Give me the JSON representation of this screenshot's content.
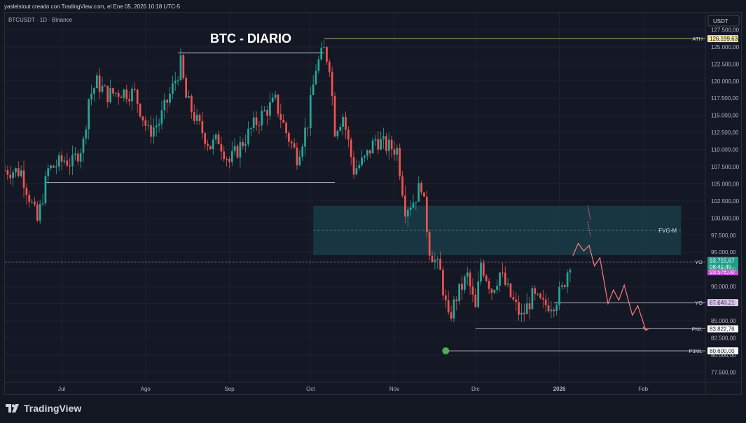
{
  "header": {
    "byline": "yaslelstout creado con TradingView.com, el Ene 05, 2026 10:18 UTC-5"
  },
  "symbol_line": "BTCUSDT · 1D · Binance",
  "currency_button": "USDT",
  "brand": {
    "name": "TradingView"
  },
  "colors": {
    "background": "#141824",
    "up": "#26a69a",
    "down": "#ef5350",
    "grid": "#1e2230",
    "text": "#b2b5be",
    "fvg_zone": "#173c48",
    "projection": "#f77c80",
    "ath_line": "#e6e08a",
    "yo_label": "#c552d6",
    "current_label": "#1e9e8a",
    "dot": "#4caf50"
  },
  "chart_data": {
    "type": "candlestick",
    "title": "BTC - DIARIO",
    "symbol": "BTCUSDT",
    "timeframe": "1D",
    "exchange": "Binance",
    "y_range": [
      76000,
      130000
    ],
    "y_ticks": [
      127500,
      125000,
      122500,
      120000,
      117500,
      115000,
      112500,
      110000,
      107500,
      105000,
      102500,
      100000,
      97500,
      95000,
      92500,
      90000,
      87500,
      85000,
      82500,
      80000,
      77500
    ],
    "y_tick_labels": [
      "127.500,00",
      "125.000,00",
      "122.500,00",
      "120.000,00",
      "117.500,00",
      "115.000,00",
      "112.500,00",
      "110.000,00",
      "107.500,00",
      "105.000,00",
      "102.500,00",
      "100.000,00",
      "97.500,00",
      "95.000,00",
      "92.500,00",
      "90.000,00",
      "87.500,00",
      "85.000,00",
      "82.500,00",
      "80.000,00",
      "77.500,00"
    ],
    "x_range": [
      "2025-06-10",
      "2026-02-24"
    ],
    "x_ticks": [
      {
        "date": "2025-07-01",
        "label": "Jul"
      },
      {
        "date": "2025-08-01",
        "label": "Ago"
      },
      {
        "date": "2025-09-01",
        "label": "Sep"
      },
      {
        "date": "2025-10-01",
        "label": "Oct"
      },
      {
        "date": "2025-11-01",
        "label": "Nov"
      },
      {
        "date": "2025-12-01",
        "label": "Dic"
      },
      {
        "date": "2026-01-01",
        "label": "2026"
      },
      {
        "date": "2026-02-01",
        "label": "Feb"
      }
    ],
    "series_closes": [
      {
        "date": "2025-06-10",
        "close": 107000
      },
      {
        "date": "2025-06-16",
        "close": 106800
      },
      {
        "date": "2025-06-22",
        "close": 99500
      },
      {
        "date": "2025-06-26",
        "close": 107000
      },
      {
        "date": "2025-07-02",
        "close": 108500
      },
      {
        "date": "2025-07-05",
        "close": 108000
      },
      {
        "date": "2025-07-09",
        "close": 111000
      },
      {
        "date": "2025-07-11",
        "close": 117500
      },
      {
        "date": "2025-07-14",
        "close": 119800
      },
      {
        "date": "2025-07-18",
        "close": 118000
      },
      {
        "date": "2025-07-23",
        "close": 118500
      },
      {
        "date": "2025-07-28",
        "close": 118200
      },
      {
        "date": "2025-08-02",
        "close": 112500
      },
      {
        "date": "2025-08-06",
        "close": 114000
      },
      {
        "date": "2025-08-11",
        "close": 119000
      },
      {
        "date": "2025-08-14",
        "close": 122500
      },
      {
        "date": "2025-08-16",
        "close": 117500
      },
      {
        "date": "2025-08-20",
        "close": 114000
      },
      {
        "date": "2025-08-25",
        "close": 110500
      },
      {
        "date": "2025-08-28",
        "close": 111500
      },
      {
        "date": "2025-09-01",
        "close": 108200
      },
      {
        "date": "2025-09-05",
        "close": 110500
      },
      {
        "date": "2025-09-10",
        "close": 113500
      },
      {
        "date": "2025-09-14",
        "close": 115500
      },
      {
        "date": "2025-09-18",
        "close": 117000
      },
      {
        "date": "2025-09-22",
        "close": 112500
      },
      {
        "date": "2025-09-26",
        "close": 109000
      },
      {
        "date": "2025-09-30",
        "close": 114000
      },
      {
        "date": "2025-10-03",
        "close": 122000
      },
      {
        "date": "2025-10-06",
        "close": 124500
      },
      {
        "date": "2025-10-08",
        "close": 122500
      },
      {
        "date": "2025-10-10",
        "close": 113000
      },
      {
        "date": "2025-10-13",
        "close": 115000
      },
      {
        "date": "2025-10-17",
        "close": 107000
      },
      {
        "date": "2025-10-21",
        "close": 108500
      },
      {
        "date": "2025-10-25",
        "close": 111500
      },
      {
        "date": "2025-10-29",
        "close": 110500
      },
      {
        "date": "2025-11-02",
        "close": 110000
      },
      {
        "date": "2025-11-05",
        "close": 101500
      },
      {
        "date": "2025-11-08",
        "close": 102500
      },
      {
        "date": "2025-11-11",
        "close": 105000
      },
      {
        "date": "2025-11-14",
        "close": 95500
      },
      {
        "date": "2025-11-18",
        "close": 92000
      },
      {
        "date": "2025-11-21",
        "close": 85000
      },
      {
        "date": "2025-11-24",
        "close": 88500
      },
      {
        "date": "2025-11-28",
        "close": 91500
      },
      {
        "date": "2025-12-01",
        "close": 86500
      },
      {
        "date": "2025-12-03",
        "close": 93500
      },
      {
        "date": "2025-12-07",
        "close": 89500
      },
      {
        "date": "2025-12-10",
        "close": 92000
      },
      {
        "date": "2025-12-14",
        "close": 88500
      },
      {
        "date": "2025-12-18",
        "close": 85500
      },
      {
        "date": "2025-12-22",
        "close": 88500
      },
      {
        "date": "2025-12-26",
        "close": 87200
      },
      {
        "date": "2025-12-30",
        "close": 87700
      },
      {
        "date": "2026-01-02",
        "close": 89500
      },
      {
        "date": "2026-01-05",
        "close": 93715.67
      }
    ],
    "levels": [
      {
        "name": "ATH",
        "value": 126199.63,
        "label": "126.199,63",
        "from": "2025-10-06"
      },
      {
        "name": "YO",
        "value": 93576.0,
        "label": "93.576,00",
        "from": "2025-06-10"
      },
      {
        "name": "YO",
        "value": 87648.21,
        "label": "87.648,21",
        "from": "2025-12-30"
      },
      {
        "name": "PML",
        "value": 83822.76,
        "label": "83.822,76",
        "from": "2025-12-01"
      },
      {
        "name": "P3ML",
        "value": 80600.0,
        "label": "80.600,00",
        "from": "2025-11-20"
      }
    ],
    "current_price": {
      "value": 93715.67,
      "label": "93.715,67",
      "countdown": "08:41:45"
    },
    "fvg_zone": {
      "label": "FVG-M",
      "from": "2025-10-02",
      "to": "2026-02-15",
      "low": 94600,
      "high": 101800,
      "mid": 98200
    },
    "range_lines": [
      {
        "date_from": "2025-08-13",
        "date_to": "2025-10-06",
        "value": 124100
      },
      {
        "date_from": "2025-06-25",
        "date_to": "2025-10-10",
        "value": 105200
      }
    ],
    "projection": [
      {
        "date": "2026-01-06",
        "value": 94500
      },
      {
        "date": "2026-01-08",
        "value": 96300
      },
      {
        "date": "2026-01-10",
        "value": 95200
      },
      {
        "date": "2026-01-12",
        "value": 96000
      },
      {
        "date": "2026-01-14",
        "value": 93000
      },
      {
        "date": "2026-01-16",
        "value": 94200
      },
      {
        "date": "2026-01-19",
        "value": 87500
      },
      {
        "date": "2026-01-21",
        "value": 89500
      },
      {
        "date": "2026-01-23",
        "value": 88000
      },
      {
        "date": "2026-01-25",
        "value": 90200
      },
      {
        "date": "2026-01-28",
        "value": 85800
      },
      {
        "date": "2026-01-30",
        "value": 87200
      },
      {
        "date": "2026-02-02",
        "value": 83600
      }
    ]
  }
}
